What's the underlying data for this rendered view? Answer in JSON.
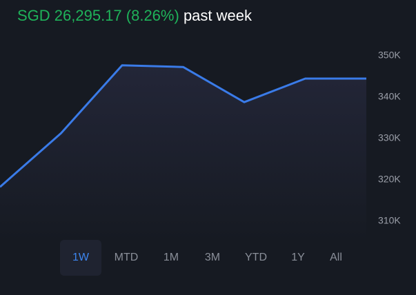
{
  "header": {
    "change": "SGD 26,295.17 (8.26%)",
    "period": "past week"
  },
  "chart_data": {
    "type": "line",
    "categories": [
      null,
      null,
      null,
      null,
      null,
      null,
      null
    ],
    "values": [
      318300,
      331300,
      347700,
      347300,
      338800,
      344500,
      344500
    ],
    "color": "#3a7be8",
    "ylim": [
      305000,
      360000
    ],
    "yticks": [
      {
        "value": 350000,
        "label": "350K"
      },
      {
        "value": 340000,
        "label": "340K"
      },
      {
        "value": 330000,
        "label": "330K"
      },
      {
        "value": 320000,
        "label": "320K"
      },
      {
        "value": 310000,
        "label": "310K"
      }
    ],
    "grid": false
  },
  "tabs": [
    {
      "label": "1W",
      "active": true
    },
    {
      "label": "MTD",
      "active": false
    },
    {
      "label": "1M",
      "active": false
    },
    {
      "label": "3M",
      "active": false
    },
    {
      "label": "YTD",
      "active": false
    },
    {
      "label": "1Y",
      "active": false
    },
    {
      "label": "All",
      "active": false
    }
  ]
}
